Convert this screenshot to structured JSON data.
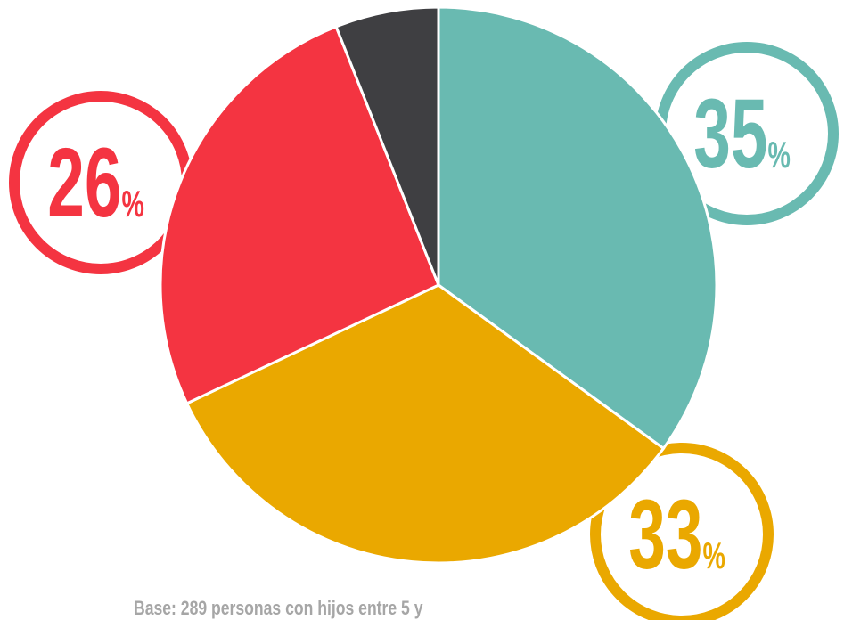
{
  "chart_data": {
    "type": "pie",
    "values": [
      35,
      33,
      26,
      6
    ],
    "value_labels": [
      "35%",
      "33%",
      "26%",
      null
    ],
    "colors": [
      "#69bab1",
      "#eaa800",
      "#f43441",
      "#3f3f42"
    ],
    "note": "Base: 289 personas con hijos entre 5 y"
  }
}
